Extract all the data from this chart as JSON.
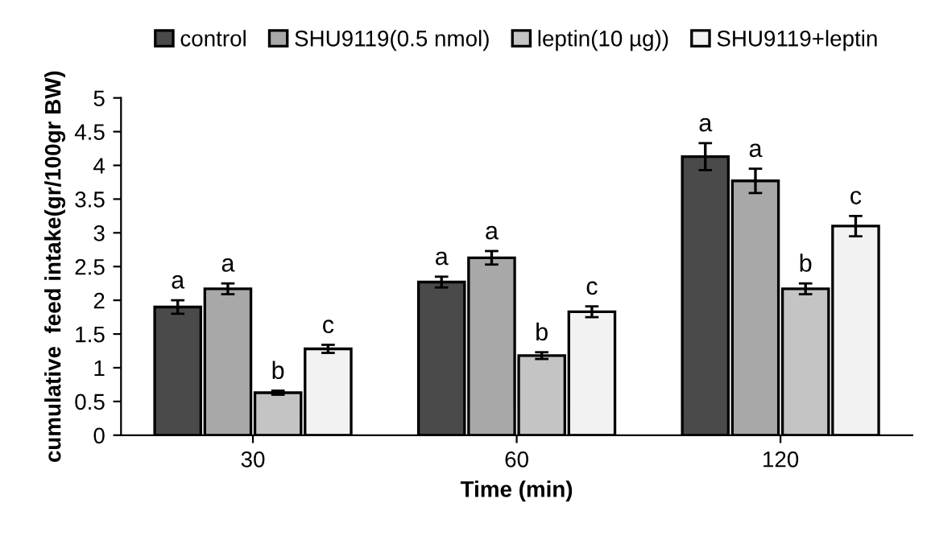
{
  "chart_data": {
    "type": "bar",
    "xlabel": "Time (min)",
    "ylabel": "cumulative  feed intake(gr/100gr BW)",
    "categories": [
      "30",
      "60",
      "120"
    ],
    "series": [
      {
        "name": "control",
        "color": "#4a4a4a",
        "values": [
          1.9,
          2.27,
          4.13
        ],
        "errors": [
          0.1,
          0.08,
          0.2
        ],
        "value_labels": [
          "a",
          "a",
          "a"
        ]
      },
      {
        "name": "SHU9119(0.5 nmol)",
        "color": "#a8a8a8",
        "values": [
          2.17,
          2.63,
          3.77
        ],
        "errors": [
          0.08,
          0.1,
          0.18
        ],
        "value_labels": [
          "a",
          "a",
          "a"
        ]
      },
      {
        "name": "leptin(10 µg))",
        "color": "#c4c4c4",
        "values": [
          0.63,
          1.18,
          2.17
        ],
        "errors": [
          0.03,
          0.05,
          0.08
        ],
        "value_labels": [
          "b",
          "b",
          "b"
        ]
      },
      {
        "name": "SHU9119+leptin",
        "color": "#f2f2f2",
        "values": [
          1.28,
          1.83,
          3.1
        ],
        "errors": [
          0.06,
          0.08,
          0.15
        ],
        "value_labels": [
          "c",
          "c",
          "c"
        ]
      }
    ],
    "ylim": [
      0,
      5
    ],
    "yticks": [
      0,
      0.5,
      1,
      1.5,
      2,
      2.5,
      3,
      3.5,
      4,
      4.5,
      5
    ],
    "grid": false,
    "legend": "top"
  }
}
